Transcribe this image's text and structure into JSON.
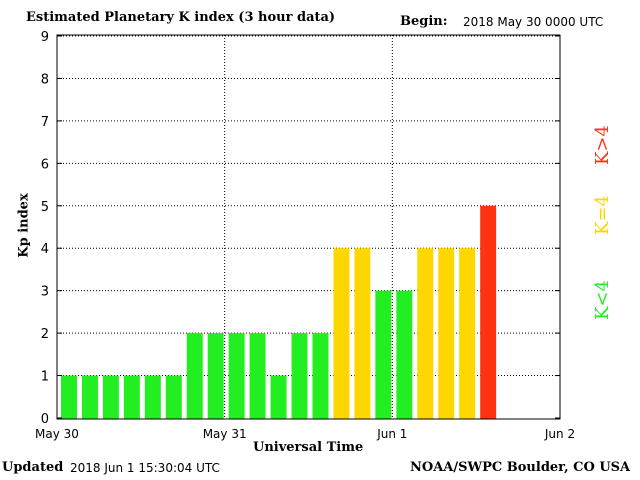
{
  "chart_data": {
    "type": "bar",
    "title": "Estimated Planetary K index (3 hour data)",
    "begin_label": "Begin:",
    "begin_value": "2018 May 30 0000 UTC",
    "xlabel": "Universal Time",
    "ylabel": "Kp index",
    "ylim": [
      0,
      9
    ],
    "yticks": [
      "0",
      "1",
      "2",
      "3",
      "4",
      "5",
      "6",
      "7",
      "8",
      "9"
    ],
    "xticks": [
      "May 30",
      "May 31",
      "Jun 1",
      "Jun 2"
    ],
    "interval_hours": 3,
    "values": [
      1,
      1,
      1,
      1,
      1,
      1,
      2,
      2,
      2,
      2,
      1,
      2,
      2,
      4,
      4,
      3,
      3,
      4,
      4,
      4,
      5
    ],
    "grid": true,
    "legend": [
      {
        "label": "K<4",
        "color": "#22ee22"
      },
      {
        "label": "K=4",
        "color": "#ffd700"
      },
      {
        "label": "K>4",
        "color": "#ff3311"
      }
    ],
    "legend_placement": "right"
  },
  "footer": {
    "updated_label": "Updated",
    "updated_value": "2018 Jun  1 15:30:04 UTC",
    "source": "NOAA/SWPC Boulder, CO USA"
  }
}
